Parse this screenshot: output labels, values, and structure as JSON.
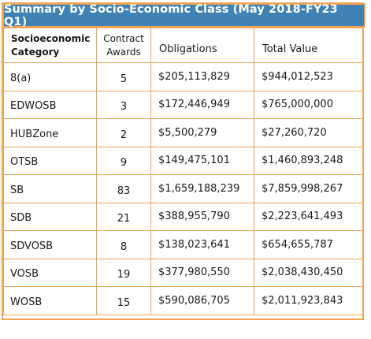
{
  "title": "Summary by Socio-Economic Class (May 2018-FY23 Q1)",
  "colors": {
    "header_bg": "#3f82b3",
    "border": "#f0a556",
    "header_text": "#ffffff"
  },
  "columns": {
    "category_line1": "Socioeconomic",
    "category_line2": "Category",
    "awards_line1": "Contract",
    "awards_line2": "Awards",
    "obligations": "Obligations",
    "total_value": "Total Value"
  },
  "rows": [
    {
      "category": "8(a)",
      "awards": "5",
      "obligations": "$205,113,829",
      "total_value": "$944,012,523"
    },
    {
      "category": "EDWOSB",
      "awards": "3",
      "obligations": "$172,446,949",
      "total_value": "$765,000,000"
    },
    {
      "category": "HUBZone",
      "awards": "2",
      "obligations": "$5,500,279",
      "total_value": "$27,260,720"
    },
    {
      "category": "OTSB",
      "awards": "9",
      "obligations": "$149,475,101",
      "total_value": "$1,460,893,248"
    },
    {
      "category": "SB",
      "awards": "83",
      "obligations": "$1,659,188,239",
      "total_value": "$7,859,998,267"
    },
    {
      "category": "SDB",
      "awards": "21",
      "obligations": "$388,955,790",
      "total_value": "$2,223,641,493"
    },
    {
      "category": "SDVOSB",
      "awards": "8",
      "obligations": "$138,023,641",
      "total_value": "$654,655,787"
    },
    {
      "category": "VOSB",
      "awards": "19",
      "obligations": "$377,980,550",
      "total_value": "$2,038,430,450"
    },
    {
      "category": "WOSB",
      "awards": "15",
      "obligations": "$590,086,705",
      "total_value": "$2,011,923,843"
    }
  ]
}
